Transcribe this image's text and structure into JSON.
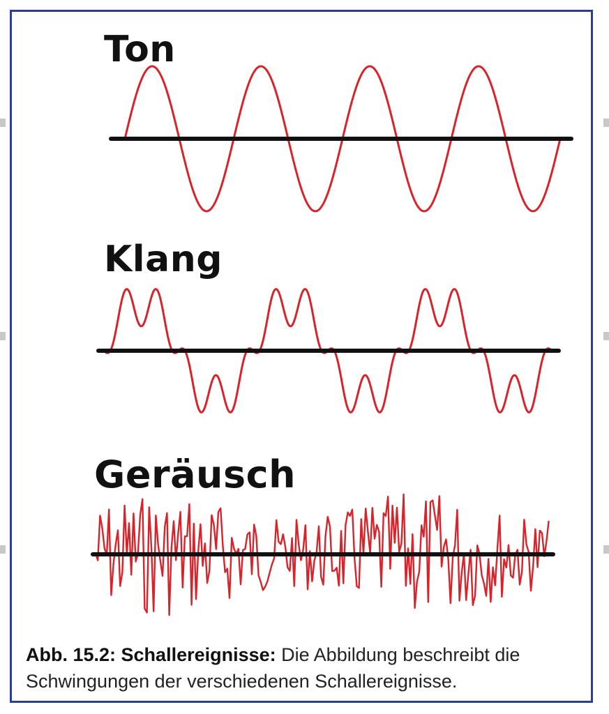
{
  "labels": {
    "ton": "Ton",
    "klang": "Klang",
    "geraeusch": "Geräusch"
  },
  "caption": {
    "bold": "Abb. 15.2: Schallereignisse:",
    "text": " Die Abbildung beschreibt die Schwingungen der verschiedenen Schallereignisse."
  },
  "colors": {
    "wave": "#d8232a",
    "axis": "#111111",
    "frame": "#2b3f8f"
  }
}
